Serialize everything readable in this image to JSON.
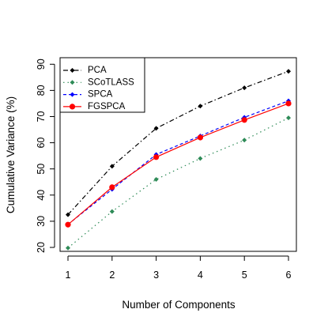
{
  "chart_data": {
    "type": "line",
    "title": "",
    "xlabel": "Number of Components",
    "ylabel": "Cumulative Variance (%)",
    "x": [
      1,
      2,
      3,
      4,
      5,
      6
    ],
    "x_ticks": [
      "1",
      "2",
      "3",
      "4",
      "5",
      "6"
    ],
    "y_ticks": [
      "20",
      "30",
      "40",
      "50",
      "60",
      "70",
      "80",
      "90"
    ],
    "xlim": [
      1,
      6
    ],
    "ylim": [
      18.5,
      92.5
    ],
    "grid": false,
    "legend_position": "top-left",
    "series": [
      {
        "name": "PCA",
        "values": [
          32.5,
          51,
          65.5,
          74,
          81,
          87.3
        ],
        "color": "#000000",
        "line_style": "dashdot",
        "marker": "diamond"
      },
      {
        "name": "SCoTLASS",
        "values": [
          19.8,
          33.7,
          46,
          54,
          61,
          69.5
        ],
        "color": "#2e8b57",
        "line_style": "dotted",
        "marker": "diamond"
      },
      {
        "name": "SPCA",
        "values": [
          28.8,
          42.2,
          55.5,
          62.6,
          69.7,
          76
        ],
        "color": "#0000ff",
        "line_style": "dashed",
        "marker": "diamond"
      },
      {
        "name": "FGSPCA",
        "values": [
          28.7,
          43,
          54.5,
          62,
          68.7,
          75
        ],
        "color": "#ff0000",
        "line_style": "solid",
        "marker": "circle"
      }
    ]
  }
}
